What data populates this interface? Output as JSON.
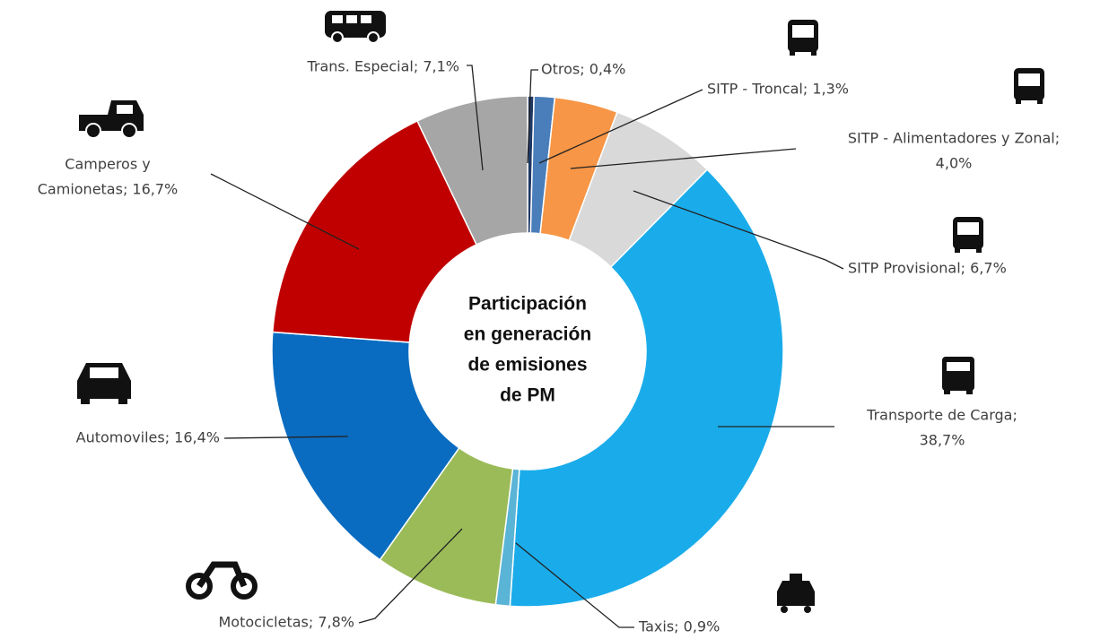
{
  "chart_data": {
    "type": "donut",
    "center_label": [
      "Participación",
      "en generación",
      "de emisiones",
      "de PM"
    ],
    "values": [
      0.4,
      1.3,
      4.0,
      6.7,
      38.7,
      0.9,
      7.8,
      16.4,
      16.7,
      7.1
    ],
    "value_labels": [
      [
        "Otros; 0,4%"
      ],
      [
        "SITP - Troncal; 1,3%"
      ],
      [
        "SITP - Alimentadores y Zonal;",
        "4,0%"
      ],
      [
        "SITP Provisional; 6,7%"
      ],
      [
        "Transporte de Carga;",
        "38,7%"
      ],
      [
        "Taxis; 0,9%"
      ],
      [
        "Motocicletas; 7,8%"
      ],
      [
        "Automoviles; 16,4%"
      ],
      [
        "Camperos y",
        "Camionetas; 16,7%"
      ],
      [
        "Trans. Especial; 7,1%"
      ]
    ],
    "colors": [
      "#1f3864",
      "#4a7ebb",
      "#f79646",
      "#d9d9d9",
      "#1aacea",
      "#5ab4d6",
      "#9bbb59",
      "#0a6cc0",
      "#c00000",
      "#a6a6a6"
    ]
  }
}
